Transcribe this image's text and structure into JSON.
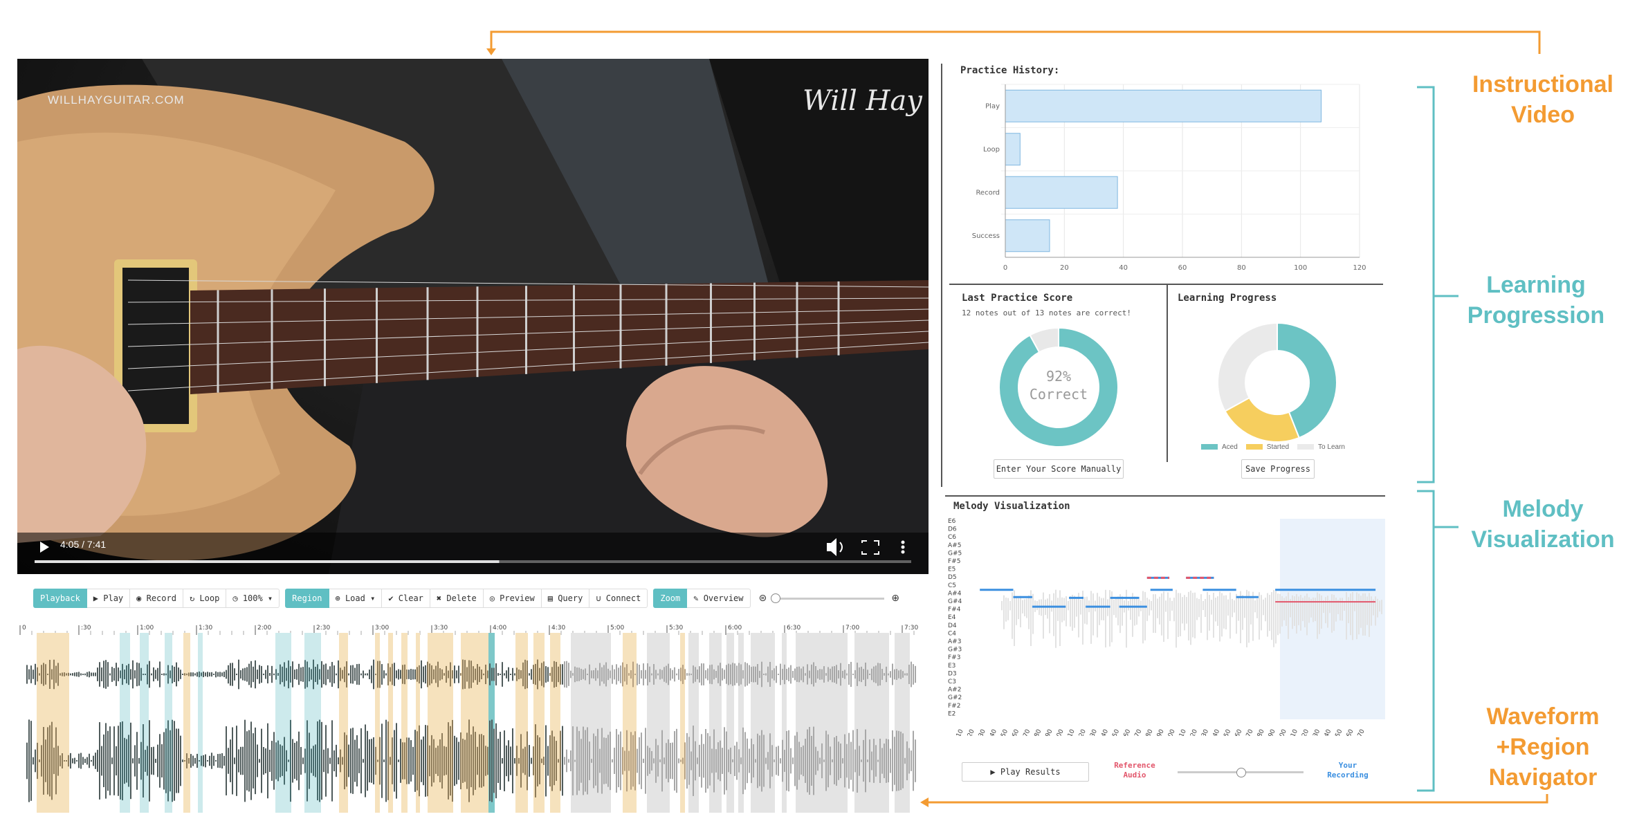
{
  "video": {
    "watermark_left": "WILLHAYGUITAR.COM",
    "watermark_right": "Will Hay",
    "time": "4:05 / 7:41",
    "progress": 0.53
  },
  "toolbar": {
    "playback_group": {
      "tag": "Playback",
      "play": "Play",
      "record": "Record",
      "loop": "Loop",
      "speed": "100%"
    },
    "region_group": {
      "tag": "Region",
      "load": "Load",
      "clear": "Clear",
      "delete": "Delete",
      "preview": "Preview",
      "query": "Query",
      "connect": "Connect"
    },
    "zoom_group": {
      "tag": "Zoom",
      "overview": "Overview"
    }
  },
  "timeline": {
    "ticks": [
      "0",
      ":30",
      "1:00",
      "1:30",
      "2:00",
      "2:30",
      "3:00",
      "3:30",
      "4:00",
      "4:30",
      "5:00",
      "5:30",
      "6:00",
      "6:30",
      "7:00",
      "7:30"
    ]
  },
  "practice_history": {
    "title": "Practice History:",
    "chart_data": {
      "type": "bar",
      "orientation": "horizontal",
      "categories": [
        "Play",
        "Loop",
        "Record",
        "Success"
      ],
      "values": [
        107,
        5,
        38,
        15
      ],
      "xlim": [
        0,
        120
      ],
      "xticks": [
        "0",
        "20",
        "40",
        "60",
        "80",
        "100",
        "120"
      ],
      "color": "#cfe6f7",
      "border_color": "#7fb7e0",
      "grid": true
    }
  },
  "last_score": {
    "title": "Last Practice Score",
    "subtitle": "12 notes out of 13 notes are correct!",
    "pct": "92%",
    "label": "Correct",
    "chart_data": {
      "type": "pie",
      "labels": [
        "Correct",
        "Incorrect"
      ],
      "values": [
        92,
        8
      ],
      "colors": [
        "#6cc4c4",
        "#e8e8e8"
      ]
    },
    "button": "Enter Your Score Manually"
  },
  "learning_progress": {
    "title": "Learning Progress",
    "chart_data": {
      "type": "pie",
      "labels": [
        "Aced",
        "Started",
        "To Learn"
      ],
      "values": [
        44,
        23,
        33
      ],
      "colors": [
        "#6cc4c4",
        "#f6ce5e",
        "#eaeaea"
      ]
    },
    "button": "Save Progress"
  },
  "melody": {
    "title": "Melody Visualization",
    "y_labels": [
      "E6",
      "D6",
      "C6",
      "A#5",
      "G#5",
      "F#5",
      "E5",
      "D5",
      "C5",
      "A#4",
      "G#4",
      "F#4",
      "E4",
      "D4",
      "C4",
      "A#3",
      "G#3",
      "F#3",
      "E3",
      "D3",
      "C3",
      "A#2",
      "G#2",
      "F#2",
      "E2"
    ],
    "x_labels": [
      "0.10",
      "0.20",
      "0.30",
      "0.40",
      "0.50",
      "0.60",
      "0.70",
      "0.80",
      "0.90",
      "1.00",
      "1.10",
      "1.20",
      "1.30",
      "1.40",
      "1.50",
      "1.60",
      "1.70",
      "1.80",
      "1.90",
      "2.00",
      "2.10",
      "2.20",
      "2.30",
      "2.40",
      "2.50",
      "2.60",
      "2.70",
      "2.80",
      "2.90",
      "3.00",
      "3.10",
      "3.20",
      "3.30",
      "3.40",
      "3.50",
      "3.60",
      "3.70"
    ],
    "play_button": "Play Results",
    "reference_label": "Reference Audio",
    "recording_label": "Your Recording",
    "reference_color": "#e2566b",
    "recording_color": "#3b8fe0",
    "slider_value": 0.5
  },
  "annotations": {
    "instructional_video": "Instructional Video",
    "learning_progression": "Learning Progression",
    "melody_visualization": "Melody Visualization",
    "waveform_navigator": "Waveform +Region Navigator"
  },
  "colors": {
    "orange": "#f39b32",
    "teal": "#5fbfc3"
  }
}
